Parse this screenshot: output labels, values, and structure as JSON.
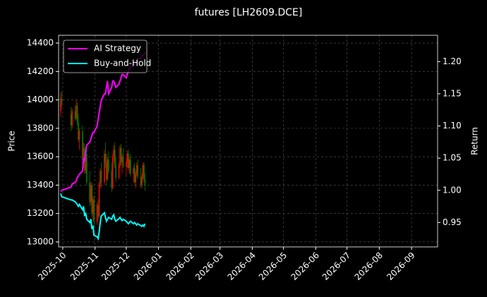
{
  "chart_data": {
    "type": "candlestick",
    "title": "futures [LH2609.DCE]",
    "ylabel": "Price",
    "y2label": "Return",
    "x": [
      "2025-09-29",
      "2025-09-30",
      "2025-10-09",
      "2025-10-10",
      "2025-10-13",
      "2025-10-14",
      "2025-10-15",
      "2025-10-16",
      "2025-10-17",
      "2025-10-20",
      "2025-10-21",
      "2025-10-22",
      "2025-10-23",
      "2025-10-24",
      "2025-10-27",
      "2025-10-28",
      "2025-10-29",
      "2025-10-30",
      "2025-10-31",
      "2025-11-03",
      "2025-11-04",
      "2025-11-05",
      "2025-11-06",
      "2025-11-07",
      "2025-11-10",
      "2025-11-11",
      "2025-11-12",
      "2025-11-13",
      "2025-11-14",
      "2025-11-17",
      "2025-11-18",
      "2025-11-19",
      "2025-11-20",
      "2025-11-21",
      "2025-11-24",
      "2025-11-25",
      "2025-11-26",
      "2025-11-27",
      "2025-11-28",
      "2025-12-01",
      "2025-12-02",
      "2025-12-03",
      "2025-12-04",
      "2025-12-05",
      "2025-12-08",
      "2025-12-09",
      "2025-12-10",
      "2025-12-11",
      "2025-12-12",
      "2025-12-15",
      "2025-12-16",
      "2025-12-17",
      "2025-12-18",
      "2025-12-19"
    ],
    "open": [
      13920,
      14010,
      13900,
      13820,
      13920,
      13870,
      13960,
      13840,
      13720,
      13780,
      13580,
      13660,
      13500,
      13620,
      13420,
      13280,
      13400,
      13200,
      13300,
      13140,
      13260,
      13180,
      13400,
      13500,
      13420,
      13620,
      13560,
      13440,
      13580,
      13500,
      13380,
      13600,
      13650,
      13540,
      13450,
      13540,
      13660,
      13560,
      13600,
      13530,
      13560,
      13620,
      13520,
      13580,
      13480,
      13520,
      13420,
      13480,
      13540,
      13460,
      13400,
      13460,
      13540,
      13440
    ],
    "high": [
      14050,
      14060,
      13950,
      13940,
      13960,
      14000,
      13980,
      13900,
      13800,
      13820,
      13700,
      13690,
      13640,
      13650,
      13500,
      13420,
      13420,
      13320,
      13330,
      13280,
      13300,
      13420,
      13520,
      13560,
      13650,
      13700,
      13620,
      13600,
      13640,
      13560,
      13620,
      13680,
      13700,
      13600,
      13560,
      13680,
      13690,
      13620,
      13660,
      13580,
      13640,
      13650,
      13600,
      13620,
      13540,
      13560,
      13500,
      13560,
      13580,
      13520,
      13480,
      13560,
      13560,
      13480
    ],
    "low": [
      13880,
      13950,
      13780,
      13800,
      13850,
      13860,
      13820,
      13700,
      13650,
      13550,
      13520,
      13480,
      13480,
      13400,
      13250,
      13260,
      13180,
      13150,
      13100,
      13120,
      13150,
      13170,
      13380,
      13380,
      13400,
      13520,
      13400,
      13430,
      13480,
      13350,
      13370,
      13560,
      13520,
      13420,
      13440,
      13520,
      13540,
      13480,
      13520,
      13460,
      13520,
      13500,
      13480,
      13460,
      13420,
      13400,
      13380,
      13460,
      13440,
      13380,
      13380,
      13440,
      13420,
      13360
    ],
    "close": [
      14010,
      13980,
      13820,
      13920,
      13870,
      13960,
      13840,
      13720,
      13780,
      13580,
      13660,
      13500,
      13620,
      13420,
      13280,
      13400,
      13200,
      13300,
      13140,
      13260,
      13180,
      13400,
      13500,
      13420,
      13620,
      13560,
      13440,
      13580,
      13500,
      13380,
      13600,
      13650,
      13540,
      13450,
      13540,
      13660,
      13560,
      13600,
      13530,
      13560,
      13620,
      13520,
      13580,
      13480,
      13520,
      13420,
      13480,
      13540,
      13460,
      13400,
      13460,
      13540,
      13440,
      13400
    ],
    "up_color": "#ff0000",
    "down_color": "#008000",
    "series": [
      {
        "name": "AI Strategy",
        "color": "#ff00ff",
        "axis": "y2",
        "values": [
          0.998,
          1.0,
          1.005,
          1.01,
          1.012,
          1.015,
          1.02,
          1.022,
          1.025,
          1.03,
          1.05,
          1.045,
          1.06,
          1.07,
          1.075,
          1.08,
          1.085,
          1.09,
          1.09,
          1.1,
          1.11,
          1.12,
          1.13,
          1.14,
          1.15,
          1.15,
          1.16,
          1.17,
          1.15,
          1.16,
          1.17,
          1.17,
          1.165,
          1.16,
          1.165,
          1.17,
          1.175,
          1.18,
          1.18,
          1.175,
          1.18,
          1.185,
          1.19,
          1.19,
          1.195,
          1.195,
          1.2,
          1.2,
          1.205,
          1.205,
          1.21,
          1.21,
          1.21,
          1.215
        ]
      },
      {
        "name": "Buy-and-Hold",
        "color": "#00ffff",
        "axis": "y2",
        "values": [
          0.995,
          0.99,
          0.985,
          0.985,
          0.982,
          0.98,
          0.978,
          0.975,
          0.978,
          0.97,
          0.975,
          0.96,
          0.965,
          0.955,
          0.95,
          0.955,
          0.94,
          0.945,
          0.93,
          0.928,
          0.925,
          0.935,
          0.95,
          0.96,
          0.965,
          0.958,
          0.952,
          0.955,
          0.958,
          0.955,
          0.96,
          0.962,
          0.955,
          0.952,
          0.956,
          0.958,
          0.955,
          0.953,
          0.955,
          0.952,
          0.95,
          0.948,
          0.95,
          0.952,
          0.948,
          0.95,
          0.948,
          0.946,
          0.948,
          0.945,
          0.944,
          0.946,
          0.944,
          0.948
        ]
      }
    ],
    "xlim": [
      "2025-09-27",
      "2026-09-26"
    ],
    "xticks": [
      {
        "value": "2025-10-01",
        "label": "2025-10"
      },
      {
        "value": "2025-11-01",
        "label": "2025-11"
      },
      {
        "value": "2025-12-01",
        "label": "2025-12"
      },
      {
        "value": "2026-01-01",
        "label": "2026-01"
      },
      {
        "value": "2026-02-01",
        "label": "2026-02"
      },
      {
        "value": "2026-03-01",
        "label": "2026-03"
      },
      {
        "value": "2026-04-01",
        "label": "2026-04"
      },
      {
        "value": "2026-05-01",
        "label": "2026-05"
      },
      {
        "value": "2026-06-01",
        "label": "2026-06"
      },
      {
        "value": "2026-07-01",
        "label": "2026-07"
      },
      {
        "value": "2026-08-01",
        "label": "2026-08"
      },
      {
        "value": "2026-09-01",
        "label": "2026-09"
      }
    ],
    "ylim": [
      12965,
      14455
    ],
    "yticks": [
      13000,
      13200,
      13400,
      13600,
      13800,
      14000,
      14200,
      14400
    ],
    "y2lim": [
      0.912,
      1.241
    ],
    "y2ticks": [
      0.95,
      {
        "value": 1,
        "label": "1.00"
      },
      1.05,
      {
        "value": 1.1,
        "label": "1.10"
      },
      1.15,
      {
        "value": 1.2,
        "label": "1.20"
      }
    ],
    "grid": true,
    "legend": "upper left"
  }
}
